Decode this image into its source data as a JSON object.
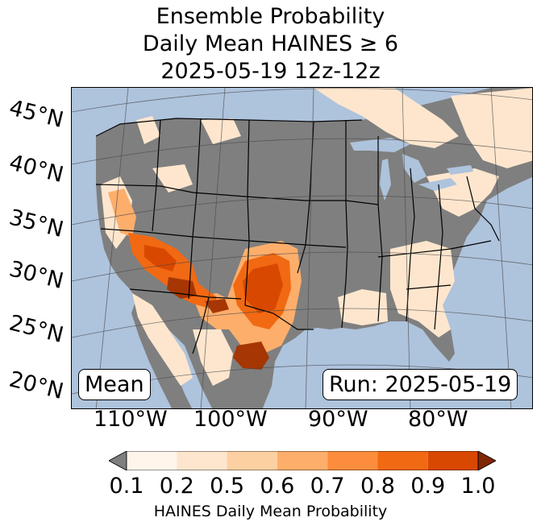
{
  "title": {
    "line1": "Ensemble Probability",
    "line2": "Daily Mean HAINES ≥ 6",
    "line3": "2025-05-19 12z-12z"
  },
  "lat_labels": [
    "45°N",
    "40°N",
    "35°N",
    "30°N",
    "25°N",
    "20°N"
  ],
  "lon_labels": [
    "110°W",
    "100°W",
    "90°W",
    "80°W"
  ],
  "left_box": "Mean",
  "right_box": "Run: 2025-05-19",
  "colorbar": {
    "ticks": [
      "0.1",
      "0.2",
      "0.5",
      "0.6",
      "0.7",
      "0.8",
      "0.9",
      "1.0"
    ],
    "label": "HAINES Daily Mean Probability",
    "colors": [
      "#fff5eb",
      "#fee6ce",
      "#fdd0a2",
      "#fdae6b",
      "#fd8d3c",
      "#f16913",
      "#d94801",
      "#a63603"
    ],
    "under_color": "#7f7f7f",
    "over_color": "#7f2704"
  },
  "map_colors": {
    "ocean": "#aec3dc",
    "land": "#7f7f7f",
    "lake": "#aec3dc"
  }
}
